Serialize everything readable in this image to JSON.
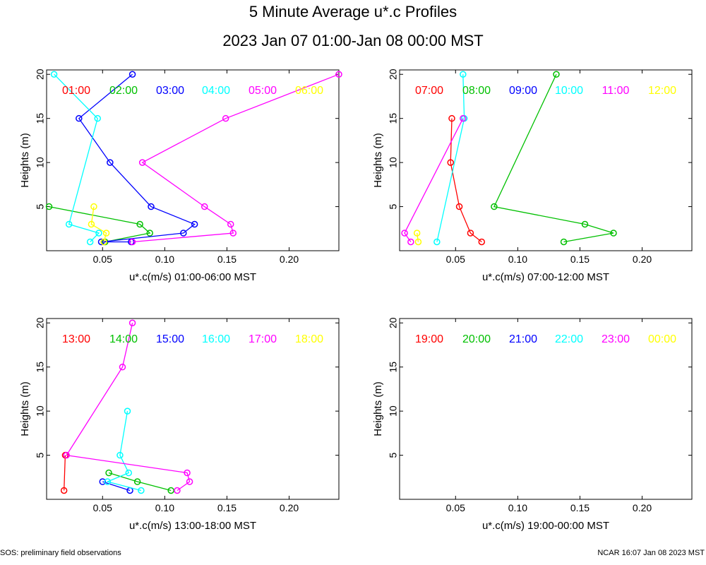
{
  "header": {
    "title": "5 Minute Average u*.c Profiles",
    "subtitle": "2023 Jan 07 01:00-Jan 08 00:00 MST"
  },
  "footer": {
    "left": "SOS: preliminary field observations",
    "right": "NCAR 16:07 Jan 08 2023 MST"
  },
  "hour_colors": [
    "#ff0000",
    "#00c000",
    "#0000ff",
    "#00ffff",
    "#ff00ff",
    "#ffff00"
  ],
  "chart_data": [
    {
      "type": "line",
      "xlabel": "u*.c(m/s) 01:00-06:00 MST",
      "ylabel": "Heights (m)",
      "xlim": [
        0.005,
        0.24
      ],
      "ylim": [
        0,
        20.5
      ],
      "xticks": [
        0.05,
        0.1,
        0.15,
        0.2
      ],
      "xtick_labels": [
        "0.05",
        "0.10",
        "0.15",
        "0.20"
      ],
      "yticks": [
        5,
        10,
        15,
        20
      ],
      "ytick_labels": [
        "5",
        "10",
        "15",
        "20"
      ],
      "legend": [
        "01:00",
        "02:00",
        "03:00",
        "04:00",
        "05:00",
        "06:00"
      ],
      "series": [
        {
          "name": "01:00",
          "points": []
        },
        {
          "name": "02:00",
          "points": [
            [
              0.052,
              1
            ],
            [
              0.088,
              2
            ],
            [
              0.08,
              3
            ],
            [
              0.007,
              5
            ]
          ]
        },
        {
          "name": "03:00",
          "points": [
            [
              0.073,
              1
            ],
            [
              0.049,
              1
            ],
            [
              0.115,
              2
            ],
            [
              0.124,
              3
            ],
            [
              0.089,
              5
            ],
            [
              0.056,
              10
            ],
            [
              0.031,
              15
            ],
            [
              0.074,
              20
            ]
          ]
        },
        {
          "name": "04:00",
          "points": [
            [
              0.04,
              1
            ],
            [
              0.047,
              2
            ],
            [
              0.023,
              3
            ],
            [
              0.046,
              15
            ],
            [
              0.011,
              20
            ]
          ]
        },
        {
          "name": "05:00",
          "points": [
            [
              0.074,
              1
            ],
            [
              0.155,
              2
            ],
            [
              0.153,
              3
            ],
            [
              0.132,
              5
            ],
            [
              0.082,
              10
            ],
            [
              0.149,
              15
            ],
            [
              0.24,
              20
            ]
          ]
        },
        {
          "name": "06:00",
          "points": [
            [
              0.051,
              1
            ],
            [
              0.053,
              2
            ],
            [
              0.041,
              3
            ],
            [
              0.043,
              5
            ]
          ]
        }
      ]
    },
    {
      "type": "line",
      "xlabel": "u*.c(m/s) 07:00-12:00 MST",
      "ylabel": "Heights (m)",
      "xlim": [
        0.005,
        0.24
      ],
      "ylim": [
        0,
        20.5
      ],
      "xticks": [
        0.05,
        0.1,
        0.15,
        0.2
      ],
      "xtick_labels": [
        "0.05",
        "0.10",
        "0.15",
        "0.20"
      ],
      "yticks": [
        5,
        10,
        15,
        20
      ],
      "ytick_labels": [
        "5",
        "10",
        "15",
        "20"
      ],
      "legend": [
        "07:00",
        "08:00",
        "09:00",
        "10:00",
        "11:00",
        "12:00"
      ],
      "series": [
        {
          "name": "07:00",
          "points": [
            [
              0.071,
              1
            ],
            [
              0.062,
              2
            ],
            [
              0.053,
              5
            ],
            [
              0.046,
              10
            ],
            [
              0.047,
              15
            ]
          ]
        },
        {
          "name": "08:00",
          "points": [
            [
              0.137,
              1
            ],
            [
              0.177,
              2
            ],
            [
              0.154,
              3
            ],
            [
              0.081,
              5
            ],
            [
              0.131,
              20
            ]
          ]
        },
        {
          "name": "09:00",
          "points": []
        },
        {
          "name": "10:00",
          "points": [
            [
              0.035,
              1
            ],
            [
              0.057,
              15
            ],
            [
              0.056,
              20
            ]
          ]
        },
        {
          "name": "11:00",
          "points": [
            [
              0.014,
              1
            ],
            [
              0.009,
              2
            ],
            [
              0.056,
              15
            ]
          ]
        },
        {
          "name": "12:00",
          "points": [
            [
              0.02,
              1
            ],
            [
              0.019,
              2
            ]
          ]
        }
      ]
    },
    {
      "type": "line",
      "xlabel": "u*.c(m/s) 13:00-18:00 MST",
      "ylabel": "Heights (m)",
      "xlim": [
        0.005,
        0.24
      ],
      "ylim": [
        0,
        20.5
      ],
      "xticks": [
        0.05,
        0.1,
        0.15,
        0.2
      ],
      "xtick_labels": [
        "0.05",
        "0.10",
        "0.15",
        "0.20"
      ],
      "yticks": [
        5,
        10,
        15,
        20
      ],
      "ytick_labels": [
        "5",
        "10",
        "15",
        "20"
      ],
      "legend": [
        "13:00",
        "14:00",
        "15:00",
        "16:00",
        "17:00",
        "18:00"
      ],
      "series": [
        {
          "name": "13:00",
          "points": [
            [
              0.019,
              1
            ],
            [
              0.02,
              5
            ]
          ]
        },
        {
          "name": "14:00",
          "points": [
            [
              0.105,
              1
            ],
            [
              0.078,
              2
            ],
            [
              0.055,
              3
            ]
          ]
        },
        {
          "name": "15:00",
          "points": [
            [
              0.072,
              1
            ],
            [
              0.05,
              2
            ]
          ]
        },
        {
          "name": "16:00",
          "points": [
            [
              0.081,
              1
            ],
            [
              0.054,
              2
            ],
            [
              0.071,
              3
            ],
            [
              0.064,
              5
            ],
            [
              0.07,
              10
            ]
          ]
        },
        {
          "name": "17:00",
          "points": [
            [
              0.11,
              1
            ],
            [
              0.12,
              2
            ],
            [
              0.118,
              3
            ],
            [
              0.021,
              5
            ],
            [
              0.066,
              15
            ],
            [
              0.074,
              20
            ]
          ]
        },
        {
          "name": "18:00",
          "points": []
        }
      ]
    },
    {
      "type": "line",
      "xlabel": "u*.c(m/s) 19:00-00:00 MST",
      "ylabel": "Heights (m)",
      "xlim": [
        0.005,
        0.24
      ],
      "ylim": [
        0,
        20.5
      ],
      "xticks": [
        0.05,
        0.1,
        0.15,
        0.2
      ],
      "xtick_labels": [
        "0.05",
        "0.10",
        "0.15",
        "0.20"
      ],
      "yticks": [
        5,
        10,
        15,
        20
      ],
      "ytick_labels": [
        "5",
        "10",
        "15",
        "20"
      ],
      "legend": [
        "19:00",
        "20:00",
        "21:00",
        "22:00",
        "23:00",
        "00:00"
      ],
      "series": [
        {
          "name": "19:00",
          "points": []
        },
        {
          "name": "20:00",
          "points": []
        },
        {
          "name": "21:00",
          "points": []
        },
        {
          "name": "22:00",
          "points": []
        },
        {
          "name": "23:00",
          "points": []
        },
        {
          "name": "00:00",
          "points": []
        }
      ]
    }
  ]
}
